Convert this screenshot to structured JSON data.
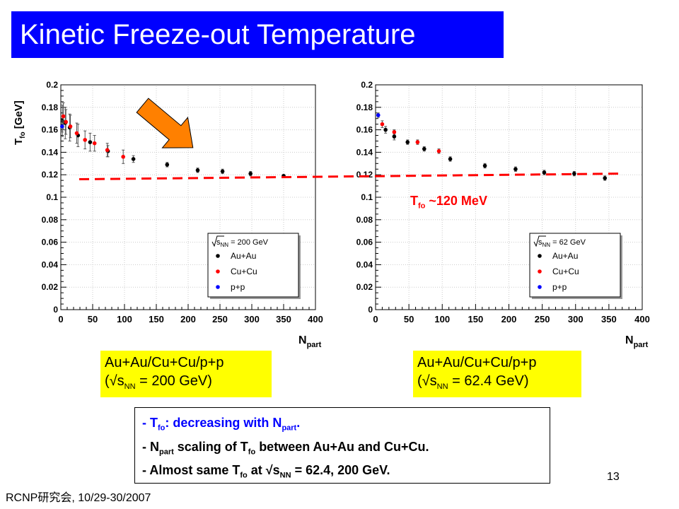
{
  "slide": {
    "title": "Kinetic Freeze-out Temperature",
    "slide_number": "13",
    "footer": "RCNP研究会, 10/29-30/2007",
    "tfo_annotation": {
      "prefix": "T",
      "sub": "fo",
      "suffix": " ~120 MeV"
    },
    "caption_left": {
      "line1": "Au+Au/Cu+Cu/p+p",
      "line2_prefix": "(√s",
      "line2_sub": "NN",
      "line2_suffix": " = 200 GeV)"
    },
    "caption_right": {
      "line1": "Au+Au/Cu+Cu/p+p",
      "line2_prefix": "(√s",
      "line2_sub": "NN",
      "line2_suffix": " = 62.4 GeV)"
    },
    "notes": [
      {
        "t1": "- T",
        "s1": "fo",
        "t2": ": decreasing with N",
        "s2": "part",
        "t3": "."
      },
      {
        "t1": "- N",
        "s1": "part",
        "t2": " scaling of T",
        "s2": "fo",
        "t3": " between Au+Au and Cu+Cu."
      },
      {
        "t1": "- Almost same T",
        "s1": "fo",
        "t2": " at √s",
        "s2": "NN",
        "t3": " = 62.4, 200 GeV."
      }
    ],
    "colors": {
      "title_bg": "#0000ff",
      "caption_bg": "#ffff00",
      "arrow": "#ff8000",
      "dashed_line": "#ff0000",
      "au": "#000000",
      "cu": "#ff0000",
      "pp": "#0000ff"
    }
  },
  "chart_data": [
    {
      "type": "scatter",
      "ylabel": {
        "main": "T",
        "sub": "fo",
        "unit": " [GeV]"
      },
      "xlabel": {
        "main": "N",
        "sub": "part"
      },
      "xlim": [
        0,
        400
      ],
      "ylim": [
        0,
        0.2
      ],
      "xticks": [
        "0",
        "50",
        "100",
        "150",
        "200",
        "250",
        "300",
        "350",
        "400"
      ],
      "yticks": [
        "0",
        "0.02",
        "0.04",
        "0.06",
        "0.08",
        "0.1",
        "0.12",
        "0.14",
        "0.16",
        "0.18",
        "0.2"
      ],
      "grid": true,
      "legend": {
        "header_prefix": "√s",
        "header_sub": "NN",
        "header_suffix": " = 200 GeV",
        "placement": "bottom-right"
      },
      "series": [
        {
          "name": "Au+Au",
          "color": "#000000",
          "points": [
            [
              350,
              0.119,
              0.001
            ],
            [
              298,
              0.121,
              0.002
            ],
            [
              254,
              0.123,
              0.002
            ],
            [
              215,
              0.124,
              0.002
            ],
            [
              167,
              0.129,
              0.002
            ],
            [
              114,
              0.134,
              0.003
            ],
            [
              74,
              0.141,
              0.005
            ],
            [
              46,
              0.149,
              0.008
            ],
            [
              27,
              0.155,
              0.01
            ],
            [
              14,
              0.162,
              0.012
            ],
            [
              7,
              0.166,
              0.014
            ],
            [
              2.5,
              0.168,
              0.014
            ]
          ]
        },
        {
          "name": "Cu+Cu",
          "color": "#ff0000",
          "points": [
            [
              98,
              0.136,
              0.006
            ],
            [
              73,
              0.142,
              0.006
            ],
            [
              53,
              0.148,
              0.007
            ],
            [
              38,
              0.151,
              0.008
            ],
            [
              25,
              0.157,
              0.009
            ],
            [
              15,
              0.163,
              0.01
            ],
            [
              8,
              0.167,
              0.011
            ],
            [
              4,
              0.172,
              0.012
            ]
          ]
        },
        {
          "name": "p+p",
          "color": "#0000ff",
          "points": [
            [
              2,
              0.163,
              0.005
            ]
          ]
        }
      ]
    },
    {
      "type": "scatter",
      "xlabel": {
        "main": "N",
        "sub": "part"
      },
      "xlim": [
        0,
        400
      ],
      "ylim": [
        0,
        0.2
      ],
      "xticks": [
        "0",
        "50",
        "100",
        "150",
        "200",
        "250",
        "300",
        "350",
        "400"
      ],
      "yticks": [
        "0",
        "0.02",
        "0.04",
        "0.06",
        "0.08",
        "0.1",
        "0.12",
        "0.14",
        "0.16",
        "0.18",
        "0.2"
      ],
      "grid": true,
      "legend": {
        "header_prefix": "√s",
        "header_sub": "NN",
        "header_suffix": " = 62 GeV",
        "placement": "bottom-right"
      },
      "series": [
        {
          "name": "Au+Au",
          "color": "#000000",
          "points": [
            [
              344,
              0.117,
              0.002
            ],
            [
              298,
              0.121,
              0.002
            ],
            [
              253,
              0.122,
              0.002
            ],
            [
              210,
              0.125,
              0.002
            ],
            [
              164,
              0.128,
              0.002
            ],
            [
              112,
              0.134,
              0.002
            ],
            [
              73,
              0.143,
              0.002
            ],
            [
              48,
              0.149,
              0.002
            ],
            [
              28,
              0.154,
              0.003
            ],
            [
              15,
              0.16,
              0.003
            ]
          ]
        },
        {
          "name": "Cu+Cu",
          "color": "#ff0000",
          "points": [
            [
              95,
              0.141,
              0.002
            ],
            [
              63,
              0.149,
              0.002
            ],
            [
              28,
              0.158,
              0.002
            ],
            [
              10,
              0.165,
              0.003
            ]
          ]
        },
        {
          "name": "p+p",
          "color": "#0000ff",
          "points": [
            [
              4,
              0.173,
              0.002
            ]
          ]
        }
      ]
    }
  ]
}
